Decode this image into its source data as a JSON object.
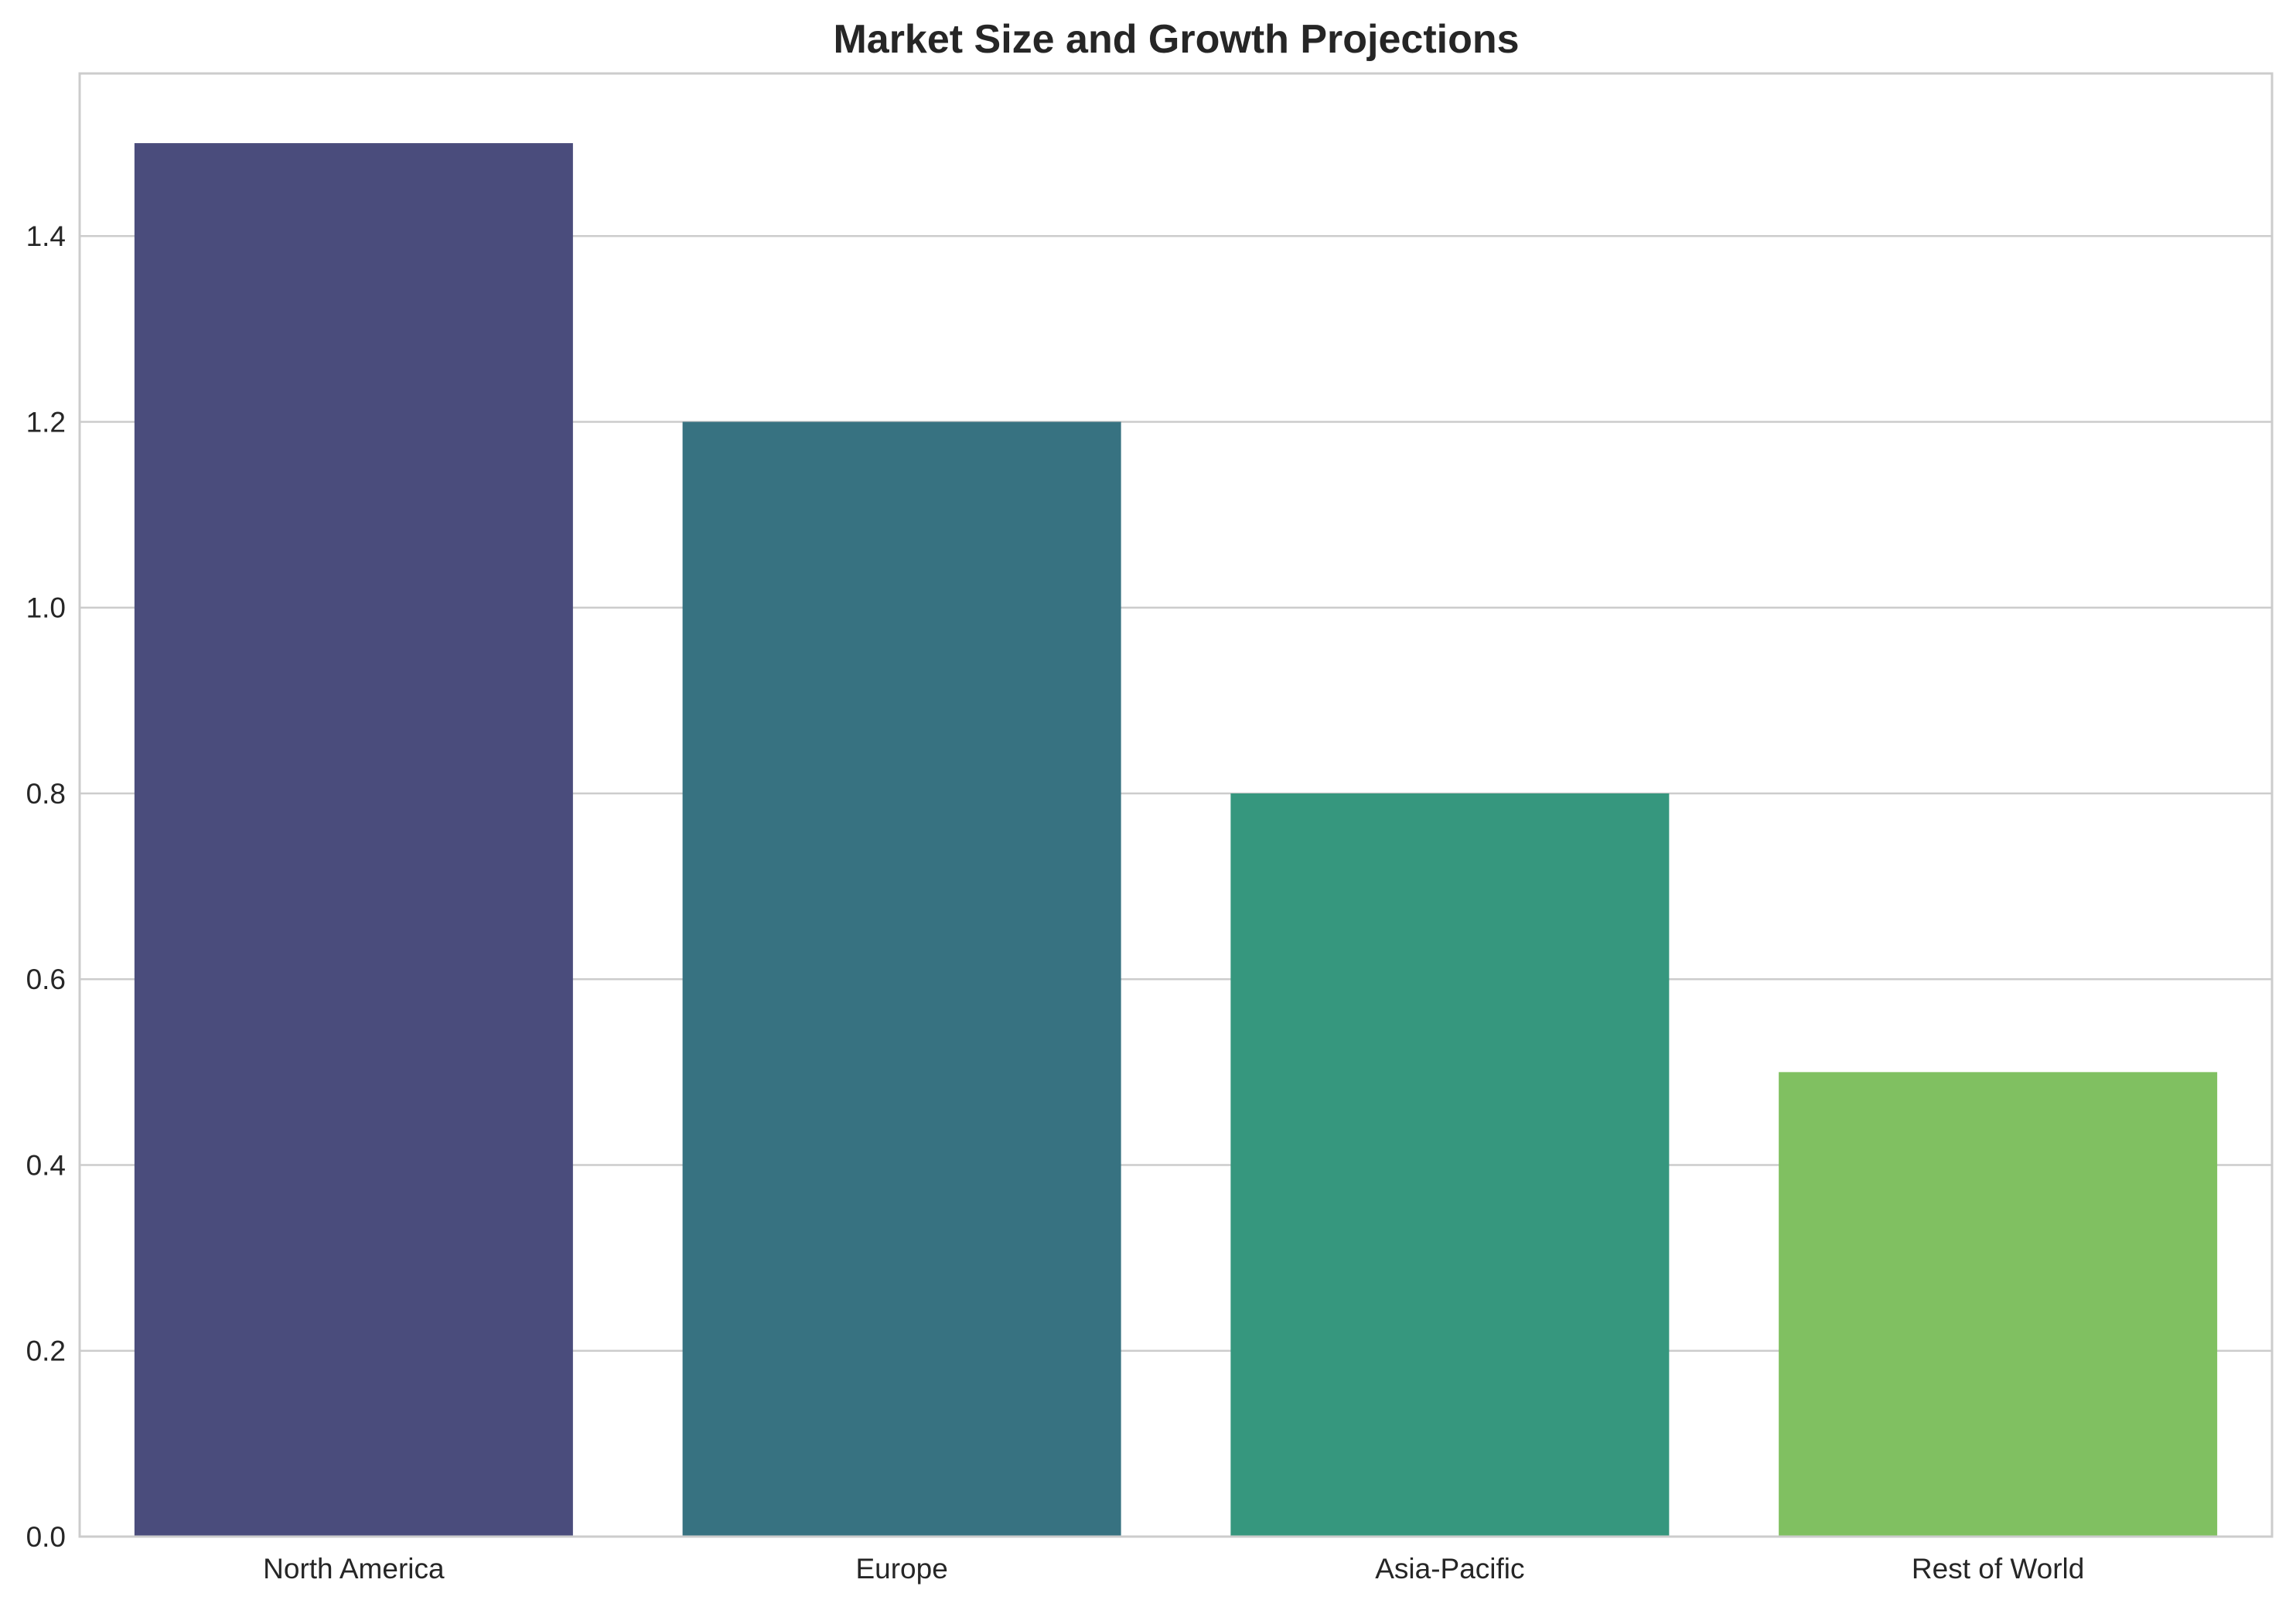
{
  "chart_data": {
    "type": "bar",
    "title": "Market Size and Growth Projections",
    "xlabel": "",
    "ylabel": "",
    "categories": [
      "North America",
      "Europe",
      "Asia-Pacific",
      "Rest of World"
    ],
    "values": [
      1.5,
      1.2,
      0.8,
      0.5
    ],
    "colors": [
      "#4a4c7c",
      "#377281",
      "#36977e",
      "#80c061"
    ],
    "ylim": [
      0,
      1.575
    ],
    "yticks": [
      0.0,
      0.2,
      0.4,
      0.6,
      0.8,
      1.0,
      1.2,
      1.4
    ],
    "ytick_labels": [
      "0.0",
      "0.2",
      "0.4",
      "0.6",
      "0.8",
      "1.0",
      "1.2",
      "1.4"
    ],
    "grid": "horizontal",
    "legend": "none"
  }
}
